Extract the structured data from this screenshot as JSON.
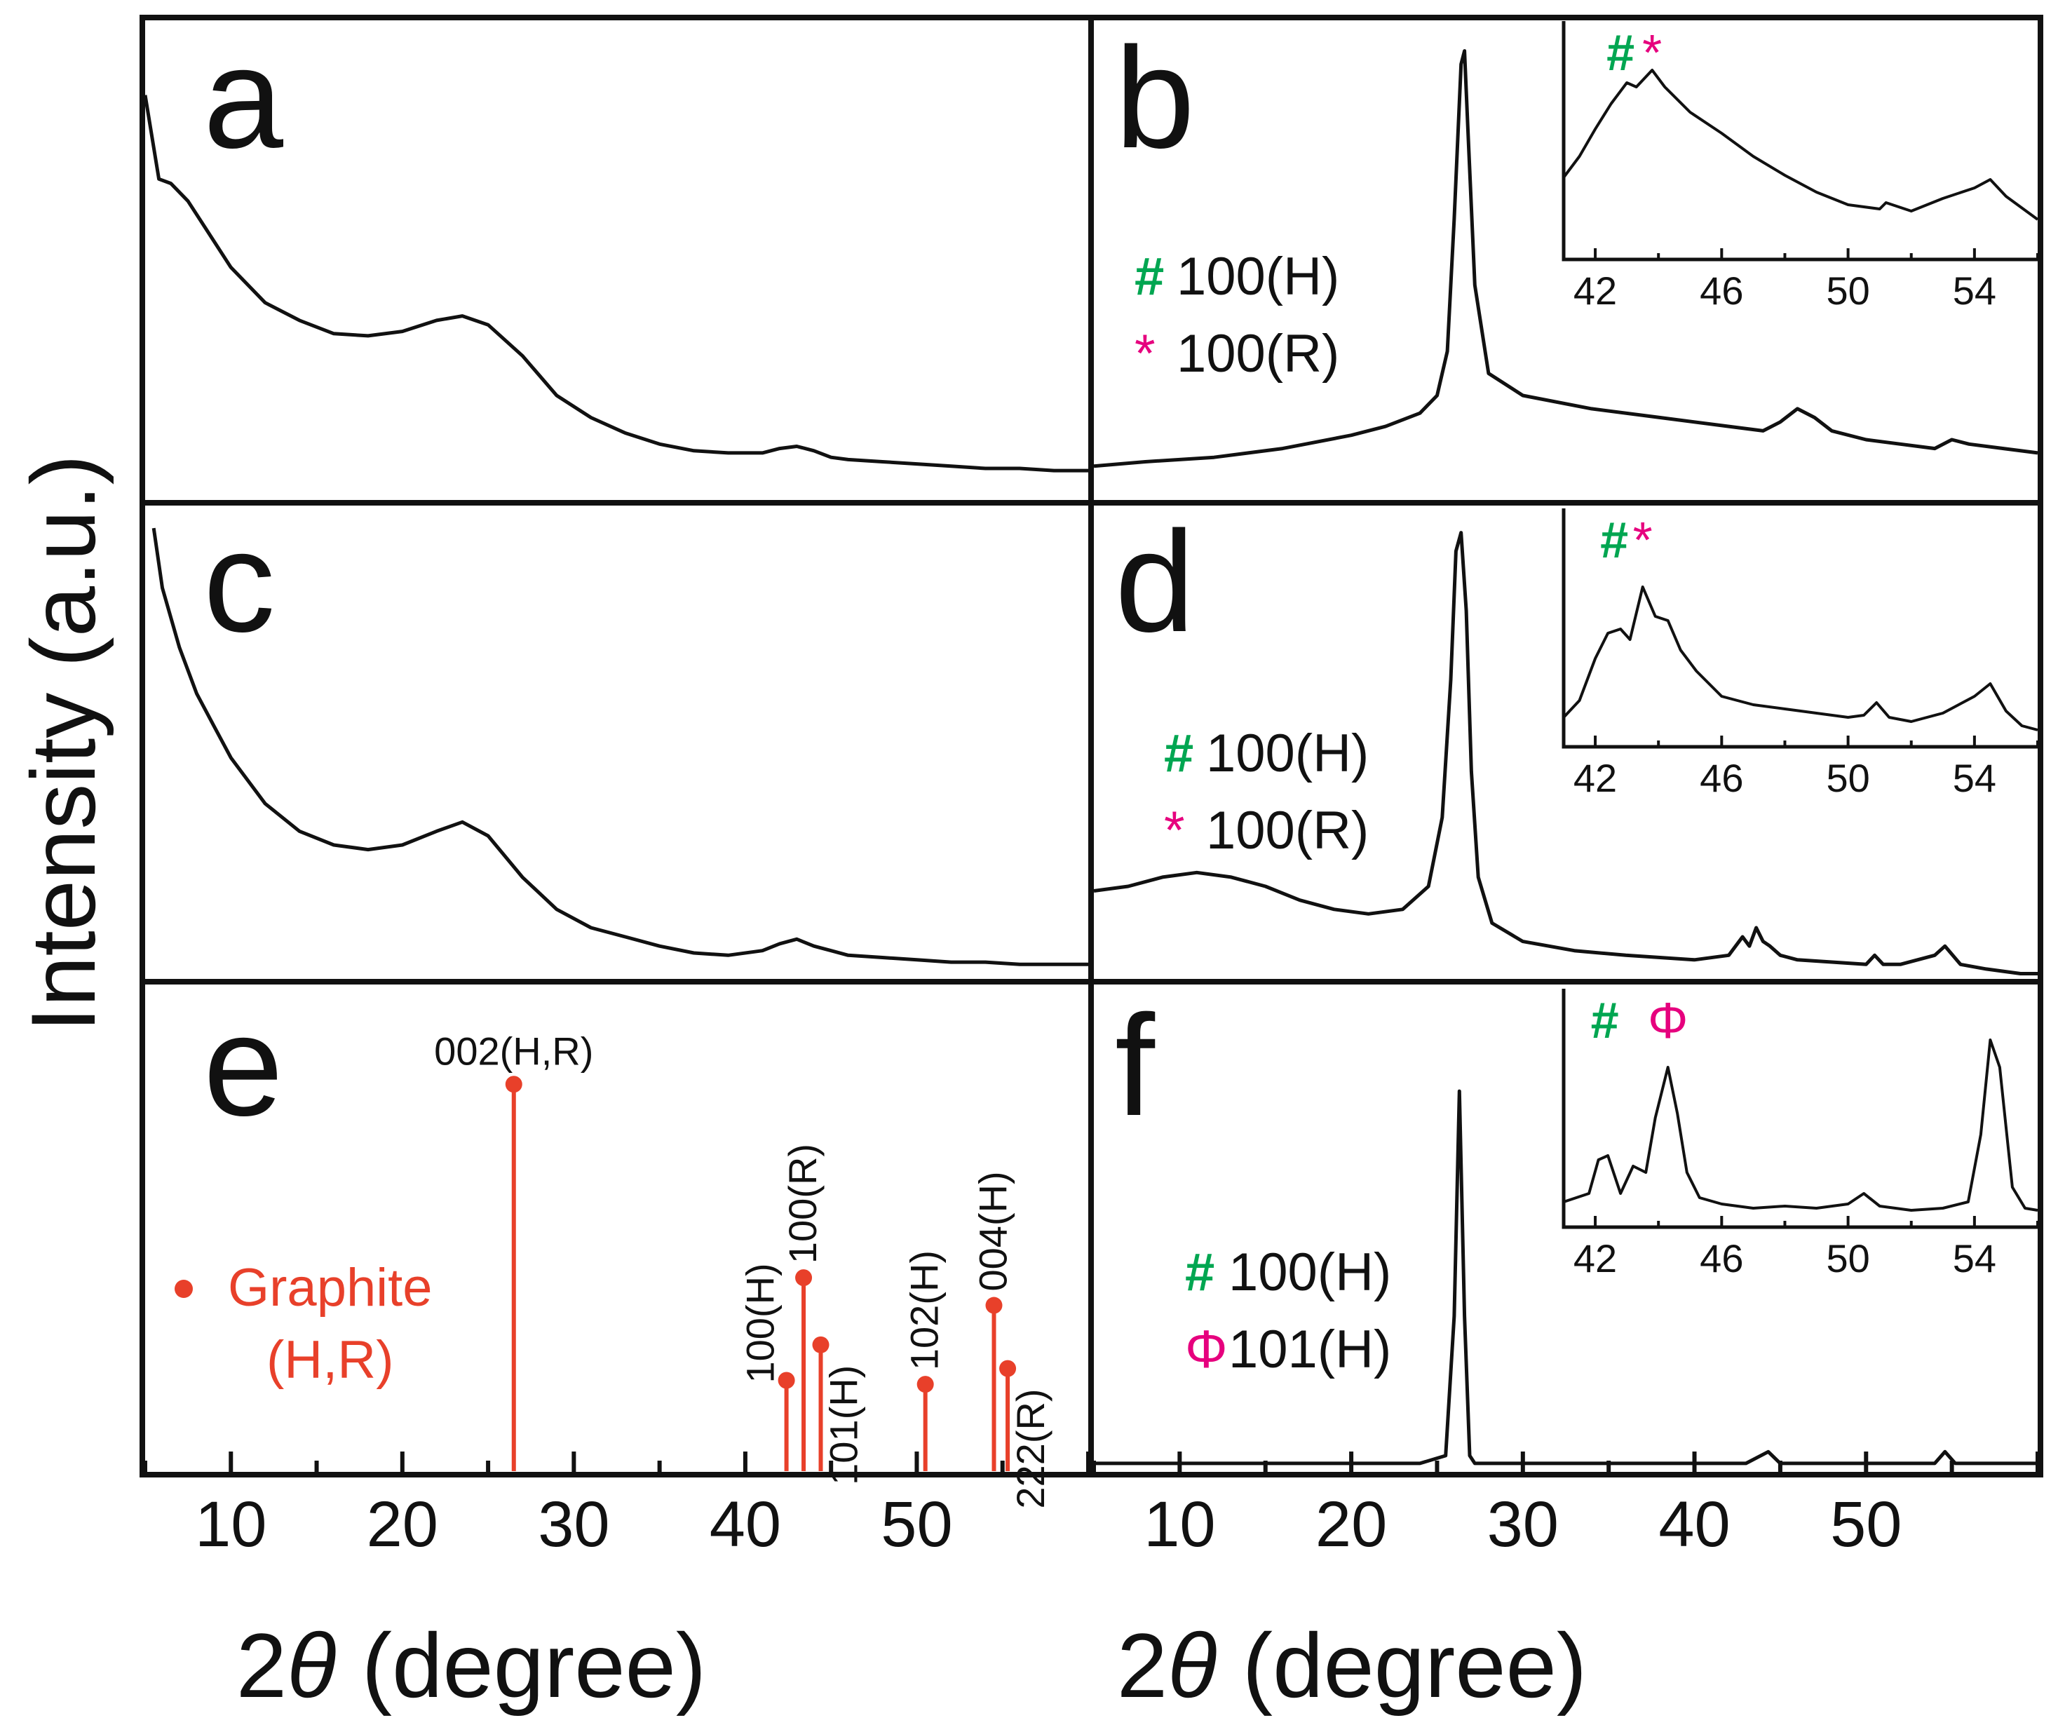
{
  "figure": {
    "ylabel": "Intensity (a.u.)",
    "xlabel": "2θ (degree)",
    "xlabel_prefix": "2",
    "xlabel_theta": "θ",
    "xlabel_suffix": " (degree)",
    "x_ticks": [
      "10",
      "20",
      "30",
      "40",
      "50"
    ],
    "panel_labels": [
      "a",
      "b",
      "c",
      "d",
      "e",
      "f"
    ],
    "colors": {
      "curve": "#111111",
      "reference": "#e8402a",
      "hash_symbol": "#00a651",
      "star_symbol": "#e6007e"
    }
  },
  "chart_data": [
    {
      "panel": "a",
      "type": "line",
      "xlim": [
        5,
        60
      ],
      "ylim": [
        0,
        1
      ],
      "series": [
        {
          "name": "a",
          "x": [
            5,
            5.8,
            6.5,
            7.5,
            8.5,
            10,
            12,
            14,
            16,
            18,
            20,
            22,
            23.5,
            25,
            27,
            29,
            31,
            33,
            35,
            37,
            39,
            41,
            42,
            43,
            44,
            45,
            46,
            48,
            50,
            52,
            54,
            56,
            58,
            60
          ],
          "y": [
            0.88,
            0.69,
            0.68,
            0.64,
            0.58,
            0.49,
            0.41,
            0.37,
            0.34,
            0.335,
            0.345,
            0.37,
            0.38,
            0.36,
            0.29,
            0.2,
            0.15,
            0.115,
            0.09,
            0.075,
            0.07,
            0.07,
            0.08,
            0.085,
            0.075,
            0.06,
            0.055,
            0.05,
            0.045,
            0.04,
            0.035,
            0.035,
            0.03,
            0.03
          ]
        }
      ]
    },
    {
      "panel": "b",
      "type": "line",
      "xlim": [
        5,
        60
      ],
      "ylim": [
        0,
        1
      ],
      "series": [
        {
          "name": "b",
          "x": [
            5,
            8,
            12,
            16,
            20,
            22,
            24,
            25,
            25.6,
            26.0,
            26.4,
            26.6,
            26.8,
            27.2,
            28,
            30,
            34,
            38,
            42,
            44,
            45,
            46,
            47,
            48,
            50,
            52,
            54,
            55,
            56,
            58,
            60
          ],
          "y": [
            0.04,
            0.05,
            0.06,
            0.08,
            0.11,
            0.13,
            0.16,
            0.2,
            0.3,
            0.6,
            0.95,
            0.98,
            0.8,
            0.45,
            0.25,
            0.2,
            0.17,
            0.15,
            0.13,
            0.12,
            0.14,
            0.17,
            0.15,
            0.12,
            0.1,
            0.09,
            0.08,
            0.1,
            0.09,
            0.08,
            0.07
          ]
        }
      ]
    },
    {
      "panel": "b-inset",
      "type": "line",
      "xlim": [
        41,
        56
      ],
      "ylim": [
        0,
        1
      ],
      "x_ticks": [
        "42",
        "46",
        "50",
        "54"
      ],
      "series": [
        {
          "name": "b inset",
          "x": [
            41,
            41.5,
            42,
            42.5,
            43,
            43.3,
            43.8,
            44.2,
            45,
            46,
            47,
            48,
            49,
            50,
            51,
            51.2,
            52,
            53,
            54,
            54.5,
            55,
            56
          ],
          "y": [
            0.35,
            0.45,
            0.58,
            0.7,
            0.8,
            0.78,
            0.86,
            0.78,
            0.66,
            0.56,
            0.45,
            0.36,
            0.28,
            0.22,
            0.2,
            0.23,
            0.19,
            0.25,
            0.3,
            0.34,
            0.26,
            0.15
          ]
        }
      ],
      "annotations": [
        {
          "symbol": "#",
          "x": 42.8
        },
        {
          "symbol": "*",
          "x": 43.8
        }
      ]
    },
    {
      "panel": "c",
      "type": "line",
      "xlim": [
        5,
        60
      ],
      "ylim": [
        0,
        1
      ],
      "series": [
        {
          "name": "c",
          "x": [
            5.5,
            6,
            7,
            8,
            9,
            10,
            12,
            14,
            16,
            18,
            20,
            22,
            23.5,
            25,
            27,
            29,
            31,
            33,
            35,
            37,
            39,
            41,
            42,
            43,
            44,
            45,
            46,
            48,
            50,
            52,
            54,
            56,
            58,
            60
          ],
          "y": [
            0.98,
            0.85,
            0.72,
            0.62,
            0.55,
            0.48,
            0.38,
            0.32,
            0.29,
            0.28,
            0.29,
            0.32,
            0.34,
            0.31,
            0.22,
            0.15,
            0.11,
            0.09,
            0.07,
            0.055,
            0.05,
            0.06,
            0.075,
            0.085,
            0.07,
            0.06,
            0.05,
            0.045,
            0.04,
            0.035,
            0.035,
            0.03,
            0.03,
            0.03
          ]
        }
      ]
    },
    {
      "panel": "d",
      "type": "line",
      "xlim": [
        5,
        60
      ],
      "ylim": [
        0,
        1
      ],
      "series": [
        {
          "name": "d",
          "x": [
            5,
            7,
            9,
            11,
            13,
            15,
            17,
            19,
            21,
            23,
            24.5,
            25.3,
            25.8,
            26.1,
            26.4,
            26.7,
            27.0,
            27.4,
            28.2,
            30,
            33,
            36,
            40,
            42,
            42.8,
            43.2,
            43.6,
            44,
            44.4,
            45,
            46,
            50,
            50.5,
            51,
            52,
            53,
            54,
            54.6,
            55.5,
            57,
            59,
            60
          ],
          "y": [
            0.19,
            0.2,
            0.22,
            0.23,
            0.22,
            0.2,
            0.17,
            0.15,
            0.14,
            0.15,
            0.2,
            0.35,
            0.65,
            0.93,
            0.97,
            0.8,
            0.45,
            0.22,
            0.12,
            0.08,
            0.06,
            0.05,
            0.04,
            0.05,
            0.09,
            0.07,
            0.11,
            0.08,
            0.07,
            0.05,
            0.04,
            0.03,
            0.05,
            0.03,
            0.03,
            0.04,
            0.05,
            0.07,
            0.03,
            0.02,
            0.01,
            0.01
          ]
        }
      ]
    },
    {
      "panel": "d-inset",
      "type": "line",
      "xlim": [
        41,
        56
      ],
      "ylim": [
        0,
        1
      ],
      "x_ticks": [
        "42",
        "46",
        "50",
        "54"
      ],
      "series": [
        {
          "name": "d inset",
          "x": [
            41,
            41.5,
            42,
            42.4,
            42.8,
            43.1,
            43.5,
            43.9,
            44.3,
            44.7,
            45.2,
            46,
            47,
            48,
            49,
            50,
            50.5,
            50.9,
            51.3,
            52,
            53,
            54,
            54.5,
            55,
            55.5,
            56
          ],
          "y": [
            0.1,
            0.18,
            0.38,
            0.5,
            0.52,
            0.47,
            0.72,
            0.58,
            0.56,
            0.42,
            0.32,
            0.2,
            0.16,
            0.14,
            0.12,
            0.1,
            0.11,
            0.17,
            0.1,
            0.08,
            0.12,
            0.2,
            0.26,
            0.13,
            0.06,
            0.04
          ]
        }
      ],
      "annotations": [
        {
          "symbol": "#",
          "x": 42.6
        },
        {
          "symbol": "*",
          "x": 43.5
        }
      ]
    },
    {
      "panel": "e",
      "type": "stem",
      "xlim": [
        5,
        60
      ],
      "ylim": [
        0,
        1
      ],
      "legend": [
        "Graphite",
        "(H,R)"
      ],
      "series": [
        {
          "name": "Graphite (H,R)",
          "points": [
            {
              "x": 26.5,
              "y": 0.98,
              "label": "002(H,R)"
            },
            {
              "x": 42.4,
              "y": 0.23,
              "label": "100(H)"
            },
            {
              "x": 43.4,
              "y": 0.49,
              "label": "100(R)"
            },
            {
              "x": 44.4,
              "y": 0.32,
              "label": "101(H)"
            },
            {
              "x": 50.5,
              "y": 0.22,
              "label": "102(H)"
            },
            {
              "x": 54.5,
              "y": 0.42,
              "label": "004(H)"
            },
            {
              "x": 55.3,
              "y": 0.26,
              "label": "222(R)"
            }
          ]
        }
      ]
    },
    {
      "panel": "f",
      "type": "line",
      "xlim": [
        5,
        60
      ],
      "ylim": [
        0,
        1
      ],
      "series": [
        {
          "name": "f",
          "x": [
            5,
            10,
            15,
            20,
            24,
            25.5,
            26.0,
            26.3,
            26.6,
            26.9,
            27.2,
            28,
            35,
            42,
            43,
            44.3,
            45,
            50,
            54,
            54.6,
            55.2,
            60
          ],
          "y": [
            0.02,
            0.02,
            0.02,
            0.02,
            0.02,
            0.04,
            0.4,
            0.98,
            0.4,
            0.04,
            0.02,
            0.02,
            0.02,
            0.02,
            0.02,
            0.05,
            0.02,
            0.02,
            0.02,
            0.05,
            0.02,
            0.02
          ]
        }
      ]
    },
    {
      "panel": "f-inset",
      "type": "line",
      "xlim": [
        41,
        56
      ],
      "ylim": [
        0,
        1
      ],
      "x_ticks": [
        "42",
        "46",
        "50",
        "54"
      ],
      "series": [
        {
          "name": "f inset",
          "x": [
            41,
            41.8,
            42.1,
            42.4,
            42.8,
            43.2,
            43.6,
            43.9,
            44.3,
            44.6,
            44.9,
            45.3,
            46,
            47,
            48,
            49,
            50,
            50.5,
            51,
            52,
            53,
            53.8,
            54.2,
            54.5,
            54.8,
            55.2,
            55.6,
            56
          ],
          "y": [
            0.08,
            0.12,
            0.28,
            0.3,
            0.12,
            0.25,
            0.22,
            0.48,
            0.72,
            0.5,
            0.22,
            0.1,
            0.07,
            0.05,
            0.06,
            0.05,
            0.07,
            0.12,
            0.06,
            0.04,
            0.05,
            0.08,
            0.4,
            0.85,
            0.72,
            0.15,
            0.05,
            0.04
          ]
        }
      ],
      "annotations": [
        {
          "symbol": "#",
          "x": 42.3
        },
        {
          "symbol": "Φ",
          "x": 44.3
        }
      ]
    }
  ],
  "legends": {
    "b": [
      {
        "symbol": "#",
        "text": "100(H)"
      },
      {
        "symbol": "*",
        "text": "100(R)"
      }
    ],
    "d": [
      {
        "symbol": "#",
        "text": "100(H)"
      },
      {
        "symbol": "*",
        "text": "100(R)"
      }
    ],
    "f": [
      {
        "symbol": "#",
        "text": "100(H)"
      },
      {
        "symbol": "Φ",
        "text": "101(H)"
      }
    ]
  }
}
